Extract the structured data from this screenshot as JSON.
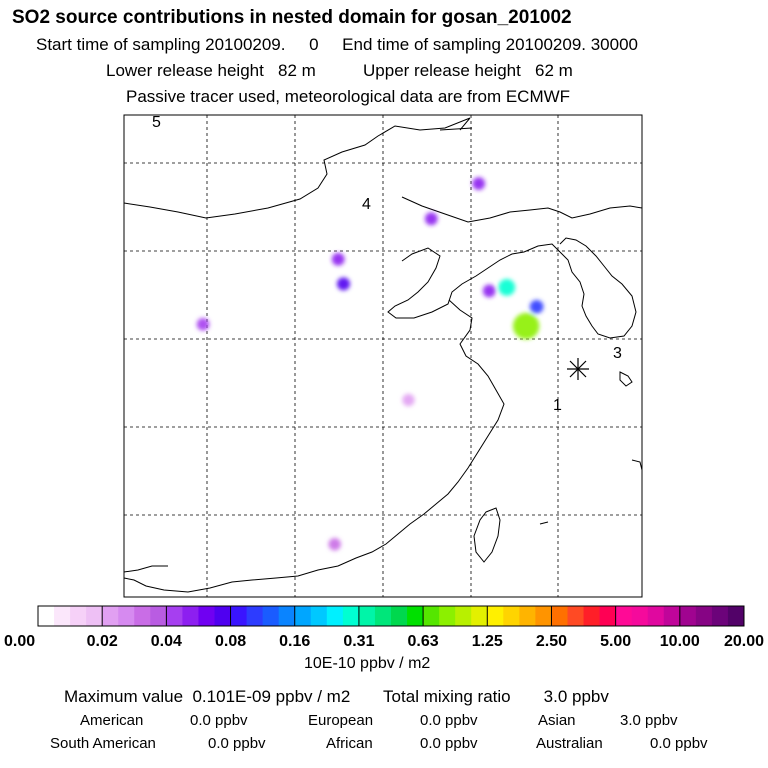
{
  "header": {
    "title": "SO2 source contributions in nested domain for gosan_201002",
    "sampling_line": "Start time of sampling 20100209.     0     End time of sampling 20100209. 30000",
    "release_line": "Lower release height   82 m          Upper release height   62 m",
    "tracer_line": "Passive tracer used, meteorological data are from ECMWF"
  },
  "chart_data": {
    "type": "heatmap",
    "title": "SO2 source contributions in nested domain for gosan_201002",
    "map_labels": [
      "5",
      "4",
      "3",
      "1"
    ],
    "receptor_marker": "star-icon",
    "colorbar": {
      "tick_labels": [
        "0.00",
        "0.02",
        "0.04",
        "0.08",
        "0.16",
        "0.31",
        "0.63",
        "1.25",
        "2.50",
        "5.00",
        "10.00",
        "20.00"
      ],
      "colors": [
        "#ffffff",
        "#fbe7fb",
        "#f6d1f8",
        "#eec0f5",
        "#e1a0f2",
        "#d68af0",
        "#c96de6",
        "#b95ce2",
        "#a63ff0",
        "#8d1ff0",
        "#7000f2",
        "#4f00f0",
        "#3a14ff",
        "#2d3cff",
        "#1a5cff",
        "#0a84ff",
        "#00a6ff",
        "#00c8ff",
        "#00f0ff",
        "#00ffd2",
        "#00f5a8",
        "#00e67a",
        "#00d84e",
        "#00e000",
        "#55e600",
        "#8cf000",
        "#b8f000",
        "#e3f000",
        "#fff000",
        "#ffd400",
        "#ffb400",
        "#ff9400",
        "#ff7000",
        "#ff4a24",
        "#ff1f28",
        "#ff0054",
        "#ff0a96",
        "#f50a9c",
        "#e0089f",
        "#c0059a",
        "#a00490",
        "#860484",
        "#6c037a",
        "#520268"
      ],
      "units": "10E-10 ppbv / m2"
    },
    "sources": [
      {
        "lon": 125.8,
        "lat": 37.4,
        "value": 0.05
      },
      {
        "lon": 127.9,
        "lat": 35.4,
        "value": 0.9
      },
      {
        "lon": 126.8,
        "lat": 37.6,
        "value": 0.3
      },
      {
        "lon": 128.5,
        "lat": 36.5,
        "value": 0.1
      },
      {
        "lon": 117.2,
        "lat": 39.2,
        "value": 0.05
      },
      {
        "lon": 117.5,
        "lat": 37.8,
        "value": 0.07
      },
      {
        "lon": 122.5,
        "lat": 41.5,
        "value": 0.05
      },
      {
        "lon": 125.2,
        "lat": 43.5,
        "value": 0.05
      },
      {
        "lon": 109.5,
        "lat": 35.5,
        "value": 0.04
      },
      {
        "lon": 117.0,
        "lat": 23.0,
        "value": 0.03
      },
      {
        "lon": 121.2,
        "lat": 31.2,
        "value": 0.02
      }
    ]
  },
  "stats": {
    "max_line": "Maximum value  0.101E-09 ppbv / m2       Total mixing ratio       3.0 ppbv",
    "row1": [
      "American",
      "0.0 ppbv",
      "European",
      "0.0 ppbv",
      "Asian",
      "3.0 ppbv"
    ],
    "row2": [
      "South American",
      "0.0 ppbv",
      "African",
      "0.0 ppbv",
      "Australian",
      "0.0 ppbv"
    ]
  }
}
